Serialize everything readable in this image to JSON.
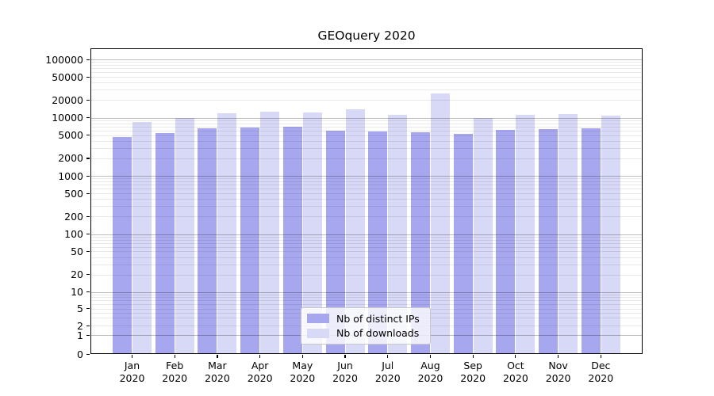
{
  "chart_data": {
    "type": "bar",
    "title": "GEOquery 2020",
    "categories": [
      "Jan 2020",
      "Feb 2020",
      "Mar 2020",
      "Apr 2020",
      "May 2020",
      "Jun 2020",
      "Jul 2020",
      "Aug 2020",
      "Sep 2020",
      "Oct 2020",
      "Nov 2020",
      "Dec 2020"
    ],
    "series": [
      {
        "name": "Nb of distinct IPs",
        "color": "#a7a7ef",
        "values": [
          4600,
          5400,
          6500,
          6800,
          6900,
          6000,
          5700,
          5600,
          5300,
          6100,
          6400,
          6600
        ]
      },
      {
        "name": "Nb of downloads",
        "color": "#d8d8f7",
        "values": [
          8300,
          9700,
          11900,
          12500,
          12300,
          13700,
          11300,
          25800,
          10000,
          11100,
          11400,
          10900
        ]
      }
    ],
    "yscale": "symlog",
    "y_ticks": [
      0,
      1,
      2,
      5,
      10,
      20,
      50,
      100,
      200,
      500,
      1000,
      2000,
      5000,
      10000,
      20000,
      50000,
      100000
    ],
    "ylim": [
      0,
      160000
    ],
    "xlabel": "",
    "ylabel": "",
    "grid": true,
    "legend_position": "lower center"
  }
}
